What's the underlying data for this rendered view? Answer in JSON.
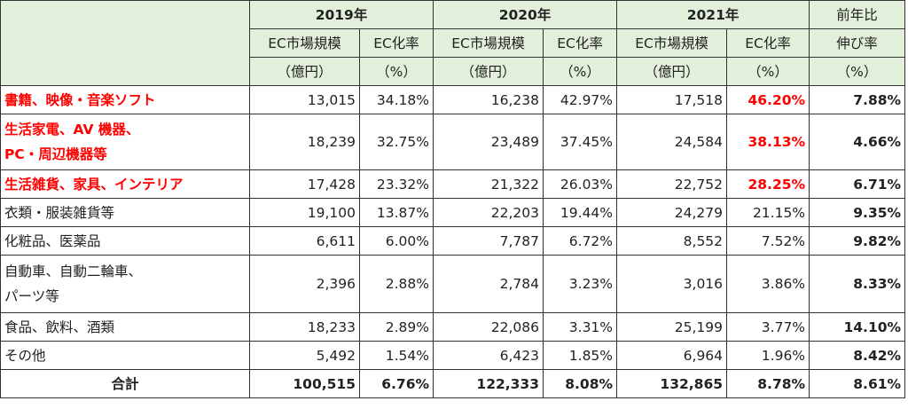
{
  "header": {
    "years": [
      "2019年",
      "2020年",
      "2021年"
    ],
    "col_market": [
      "EC市場規模",
      "（億円）"
    ],
    "col_rate": [
      "EC化率",
      "（%）"
    ],
    "col_growth": [
      "前年比",
      "伸び率",
      "（%）"
    ]
  },
  "rows": [
    {
      "category": [
        "書籍、映像・音楽ソフト"
      ],
      "v2019": "13,015",
      "r2019": "34.18%",
      "v2020": "16,238",
      "r2020": "42.97%",
      "v2021": "17,518",
      "r2021": "46.20%",
      "growth": "7.88%"
    },
    {
      "category": [
        "生活家電、AV 機器、",
        "PC・周辺機器等"
      ],
      "v2019": "18,239",
      "r2019": "32.75%",
      "v2020": "23,489",
      "r2020": "37.45%",
      "v2021": "24,584",
      "r2021": "38.13%",
      "growth": "4.66%"
    },
    {
      "category": [
        "生活雑貨、家具、インテリア"
      ],
      "v2019": "17,428",
      "r2019": "23.32%",
      "v2020": "21,322",
      "r2020": "26.03%",
      "v2021": "22,752",
      "r2021": "28.25%",
      "growth": "6.71%"
    },
    {
      "category": [
        "衣類・服装雑貨等"
      ],
      "v2019": "19,100",
      "r2019": "13.87%",
      "v2020": "22,203",
      "r2020": "19.44%",
      "v2021": "24,279",
      "r2021": "21.15%",
      "growth": "9.35%"
    },
    {
      "category": [
        "化粧品、医薬品"
      ],
      "v2019": "6,611",
      "r2019": "6.00%",
      "v2020": "7,787",
      "r2020": "6.72%",
      "v2021": "8,552",
      "r2021": "7.52%",
      "growth": "9.82%"
    },
    {
      "category": [
        "自動車、自動二輪車、",
        "パーツ等"
      ],
      "v2019": "2,396",
      "r2019": "2.88%",
      "v2020": "2,784",
      "r2020": "3.23%",
      "v2021": "3,016",
      "r2021": "3.86%",
      "growth": "8.33%"
    },
    {
      "category": [
        "食品、飲料、酒類"
      ],
      "v2019": "18,233",
      "r2019": "2.89%",
      "v2020": "22,086",
      "r2020": "3.31%",
      "v2021": "25,199",
      "r2021": "3.77%",
      "growth": "14.10%"
    },
    {
      "category": [
        "その他"
      ],
      "v2019": "5,492",
      "r2019": "1.54%",
      "v2020": "6,423",
      "r2020": "1.85%",
      "v2021": "6,964",
      "r2021": "1.96%",
      "growth": "8.42%"
    }
  ],
  "total": {
    "label": "合計",
    "v2019": "100,515",
    "r2019": "6.76%",
    "v2020": "122,333",
    "r2020": "8.08%",
    "v2021": "132,865",
    "r2021": "8.78%",
    "growth": "8.61%"
  },
  "colors": {
    "header_bg": "#e2efda",
    "highlight": "#ff0000",
    "border": "#333333"
  }
}
